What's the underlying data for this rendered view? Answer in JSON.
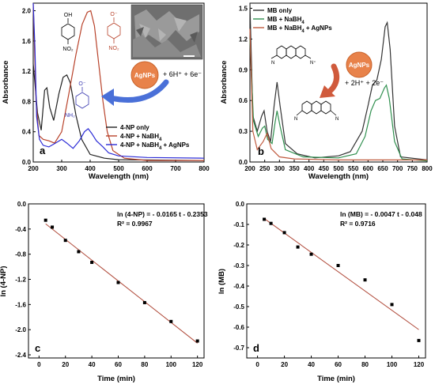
{
  "chart_data": [
    {
      "id": "a",
      "type": "line",
      "panel_label": "a",
      "xlabel": "Wavelength (nm)",
      "ylabel": "Absorbance",
      "xlim": [
        200,
        800
      ],
      "ylim": [
        0,
        2.1
      ],
      "x_ticks": [
        200,
        300,
        400,
        500,
        600,
        700,
        800
      ],
      "y_ticks": [
        0.0,
        0.4,
        0.8,
        1.2,
        1.6,
        2.0
      ],
      "legend_position": "bottom-right",
      "series": [
        {
          "name": "4-NP only",
          "color": "#222222",
          "points": [
            [
              200,
              1.3
            ],
            [
              215,
              0.65
            ],
            [
              228,
              0.42
            ],
            [
              240,
              0.95
            ],
            [
              248,
              0.98
            ],
            [
              258,
              0.72
            ],
            [
              272,
              0.55
            ],
            [
              290,
              0.9
            ],
            [
              305,
              1.12
            ],
            [
              318,
              1.15
            ],
            [
              330,
              1.05
            ],
            [
              350,
              0.62
            ],
            [
              370,
              0.3
            ],
            [
              400,
              0.1
            ],
            [
              450,
              0.05
            ],
            [
              500,
              0.03
            ],
            [
              800,
              0.02
            ]
          ]
        },
        {
          "name": "4-NP + NaBH4",
          "color": "#b8422a",
          "points": [
            [
              200,
              2.1
            ],
            [
              210,
              0.8
            ],
            [
              220,
              0.35
            ],
            [
              235,
              0.3
            ],
            [
              255,
              0.28
            ],
            [
              275,
              0.25
            ],
            [
              300,
              0.4
            ],
            [
              325,
              0.9
            ],
            [
              350,
              1.42
            ],
            [
              372,
              1.82
            ],
            [
              390,
              1.98
            ],
            [
              402,
              2.0
            ],
            [
              415,
              1.8
            ],
            [
              430,
              1.3
            ],
            [
              445,
              0.8
            ],
            [
              460,
              0.4
            ],
            [
              480,
              0.15
            ],
            [
              520,
              0.05
            ],
            [
              600,
              0.02
            ],
            [
              800,
              0.02
            ]
          ]
        },
        {
          "name": "4-NP + NaBH4 + AgNPs",
          "color": "#2b2bd6",
          "points": [
            [
              200,
              2.15
            ],
            [
              206,
              1.5
            ],
            [
              212,
              0.6
            ],
            [
              222,
              0.3
            ],
            [
              235,
              0.22
            ],
            [
              255,
              0.2
            ],
            [
              278,
              0.25
            ],
            [
              300,
              0.3
            ],
            [
              318,
              0.25
            ],
            [
              340,
              0.18
            ],
            [
              362,
              0.28
            ],
            [
              380,
              0.4
            ],
            [
              393,
              0.44
            ],
            [
              405,
              0.38
            ],
            [
              422,
              0.28
            ],
            [
              445,
              0.2
            ],
            [
              465,
              0.12
            ],
            [
              500,
              0.08
            ],
            [
              600,
              0.06
            ],
            [
              800,
              0.05
            ]
          ]
        }
      ],
      "legend": [
        "4-NP only",
        "4-NP + NaBH4",
        "4-NP + NaBH4 + AgNPs"
      ],
      "annotations": {
        "agnps": "AgNPs",
        "reaction": "+ 6H⁺ + 6e⁻",
        "oh": "OH",
        "no2_top": "NO₂",
        "o_minus": "O⁻",
        "nh2": "NH₂",
        "o_top": "O⁻",
        "no2_right": "NO₂"
      }
    },
    {
      "id": "b",
      "type": "line",
      "panel_label": "b",
      "xlabel": "Wavelength (nm)",
      "ylabel": "Absorbance",
      "xlim": [
        200,
        800
      ],
      "ylim": [
        0,
        1.55
      ],
      "x_ticks": [
        200,
        250,
        300,
        350,
        400,
        450,
        500,
        550,
        600,
        650,
        700,
        750,
        800
      ],
      "y_ticks": [
        0.0,
        0.3,
        0.6,
        0.9,
        1.2,
        1.5
      ],
      "legend_position": "top-left",
      "series": [
        {
          "name": "MB only",
          "color": "#333333",
          "points": [
            [
              200,
              1.55
            ],
            [
              210,
              0.45
            ],
            [
              225,
              0.3
            ],
            [
              240,
              0.45
            ],
            [
              248,
              0.5
            ],
            [
              258,
              0.3
            ],
            [
              270,
              0.2
            ],
            [
              282,
              0.55
            ],
            [
              292,
              0.78
            ],
            [
              302,
              0.55
            ],
            [
              320,
              0.18
            ],
            [
              360,
              0.08
            ],
            [
              420,
              0.04
            ],
            [
              500,
              0.06
            ],
            [
              540,
              0.1
            ],
            [
              580,
              0.3
            ],
            [
              600,
              0.55
            ],
            [
              615,
              0.75
            ],
            [
              630,
              0.8
            ],
            [
              645,
              1.0
            ],
            [
              658,
              1.32
            ],
            [
              665,
              1.36
            ],
            [
              675,
              1.1
            ],
            [
              690,
              0.35
            ],
            [
              710,
              0.05
            ],
            [
              800,
              0.02
            ]
          ]
        },
        {
          "name": "MB + NaBH4",
          "color": "#2f8f4e",
          "points": [
            [
              200,
              1.2
            ],
            [
              212,
              0.4
            ],
            [
              228,
              0.25
            ],
            [
              242,
              0.33
            ],
            [
              250,
              0.35
            ],
            [
              260,
              0.22
            ],
            [
              275,
              0.18
            ],
            [
              285,
              0.38
            ],
            [
              292,
              0.5
            ],
            [
              302,
              0.35
            ],
            [
              320,
              0.12
            ],
            [
              380,
              0.05
            ],
            [
              500,
              0.04
            ],
            [
              560,
              0.08
            ],
            [
              590,
              0.25
            ],
            [
              610,
              0.5
            ],
            [
              625,
              0.6
            ],
            [
              640,
              0.62
            ],
            [
              655,
              0.72
            ],
            [
              662,
              0.75
            ],
            [
              672,
              0.62
            ],
            [
              690,
              0.2
            ],
            [
              715,
              0.03
            ],
            [
              800,
              0.01
            ]
          ]
        },
        {
          "name": "MB + NaBH4 + AgNPs",
          "color": "#c05a3e",
          "points": [
            [
              200,
              1.3
            ],
            [
              210,
              0.3
            ],
            [
              225,
              0.12
            ],
            [
              245,
              0.2
            ],
            [
              258,
              0.28
            ],
            [
              272,
              0.13
            ],
            [
              300,
              0.05
            ],
            [
              350,
              0.03
            ],
            [
              500,
              0.02
            ],
            [
              800,
              0.02
            ]
          ]
        }
      ],
      "legend": [
        "MB only",
        "MB + NaBH4",
        "MB + NaBH4 + AgNPs"
      ],
      "annotations": {
        "agnps": "AgNPs",
        "reaction": "+ 2H⁺ + 2e⁻"
      }
    },
    {
      "id": "c",
      "type": "scatter",
      "panel_label": "c",
      "xlabel": "Time (min)",
      "ylabel": "ln (4-NP)",
      "xlim": [
        -8,
        125
      ],
      "ylim": [
        -2.45,
        0.0
      ],
      "x_ticks": [
        0,
        20,
        40,
        60,
        80,
        100,
        120
      ],
      "y_ticks": [
        0.0,
        -0.4,
        -0.8,
        -1.2,
        -1.6,
        -2.0,
        -2.4
      ],
      "equation": "ln (4-NP) = - 0.0165 t - 0.2353",
      "r2": "R² = 0.9967",
      "fit": {
        "slope": -0.0165,
        "intercept": -0.2353,
        "x_range": [
          5,
          120
        ],
        "color": "#b04a3a"
      },
      "points": [
        [
          5,
          -0.26
        ],
        [
          10,
          -0.37
        ],
        [
          20,
          -0.58
        ],
        [
          30,
          -0.76
        ],
        [
          40,
          -0.93
        ],
        [
          60,
          -1.25
        ],
        [
          80,
          -1.57
        ],
        [
          100,
          -1.87
        ],
        [
          120,
          -2.18
        ]
      ]
    },
    {
      "id": "d",
      "type": "scatter",
      "panel_label": "d",
      "xlabel": "Time (min)",
      "ylabel": "ln (MB)",
      "xlim": [
        -8,
        125
      ],
      "ylim": [
        -0.75,
        0.0
      ],
      "x_ticks": [
        0,
        20,
        40,
        60,
        80,
        100,
        120
      ],
      "y_ticks": [
        0.0,
        -0.1,
        -0.2,
        -0.3,
        -0.4,
        -0.5,
        -0.6,
        -0.7
      ],
      "equation": "ln (MB) = - 0.0047 t - 0.048",
      "r2": "R² = 0.9716",
      "fit": {
        "slope": -0.0047,
        "intercept": -0.048,
        "x_range": [
          5,
          120
        ],
        "color": "#b04a3a"
      },
      "points": [
        [
          5,
          -0.075
        ],
        [
          10,
          -0.095
        ],
        [
          20,
          -0.14
        ],
        [
          30,
          -0.21
        ],
        [
          40,
          -0.245
        ],
        [
          60,
          -0.3
        ],
        [
          80,
          -0.37
        ],
        [
          100,
          -0.49
        ],
        [
          120,
          -0.665
        ]
      ]
    }
  ]
}
